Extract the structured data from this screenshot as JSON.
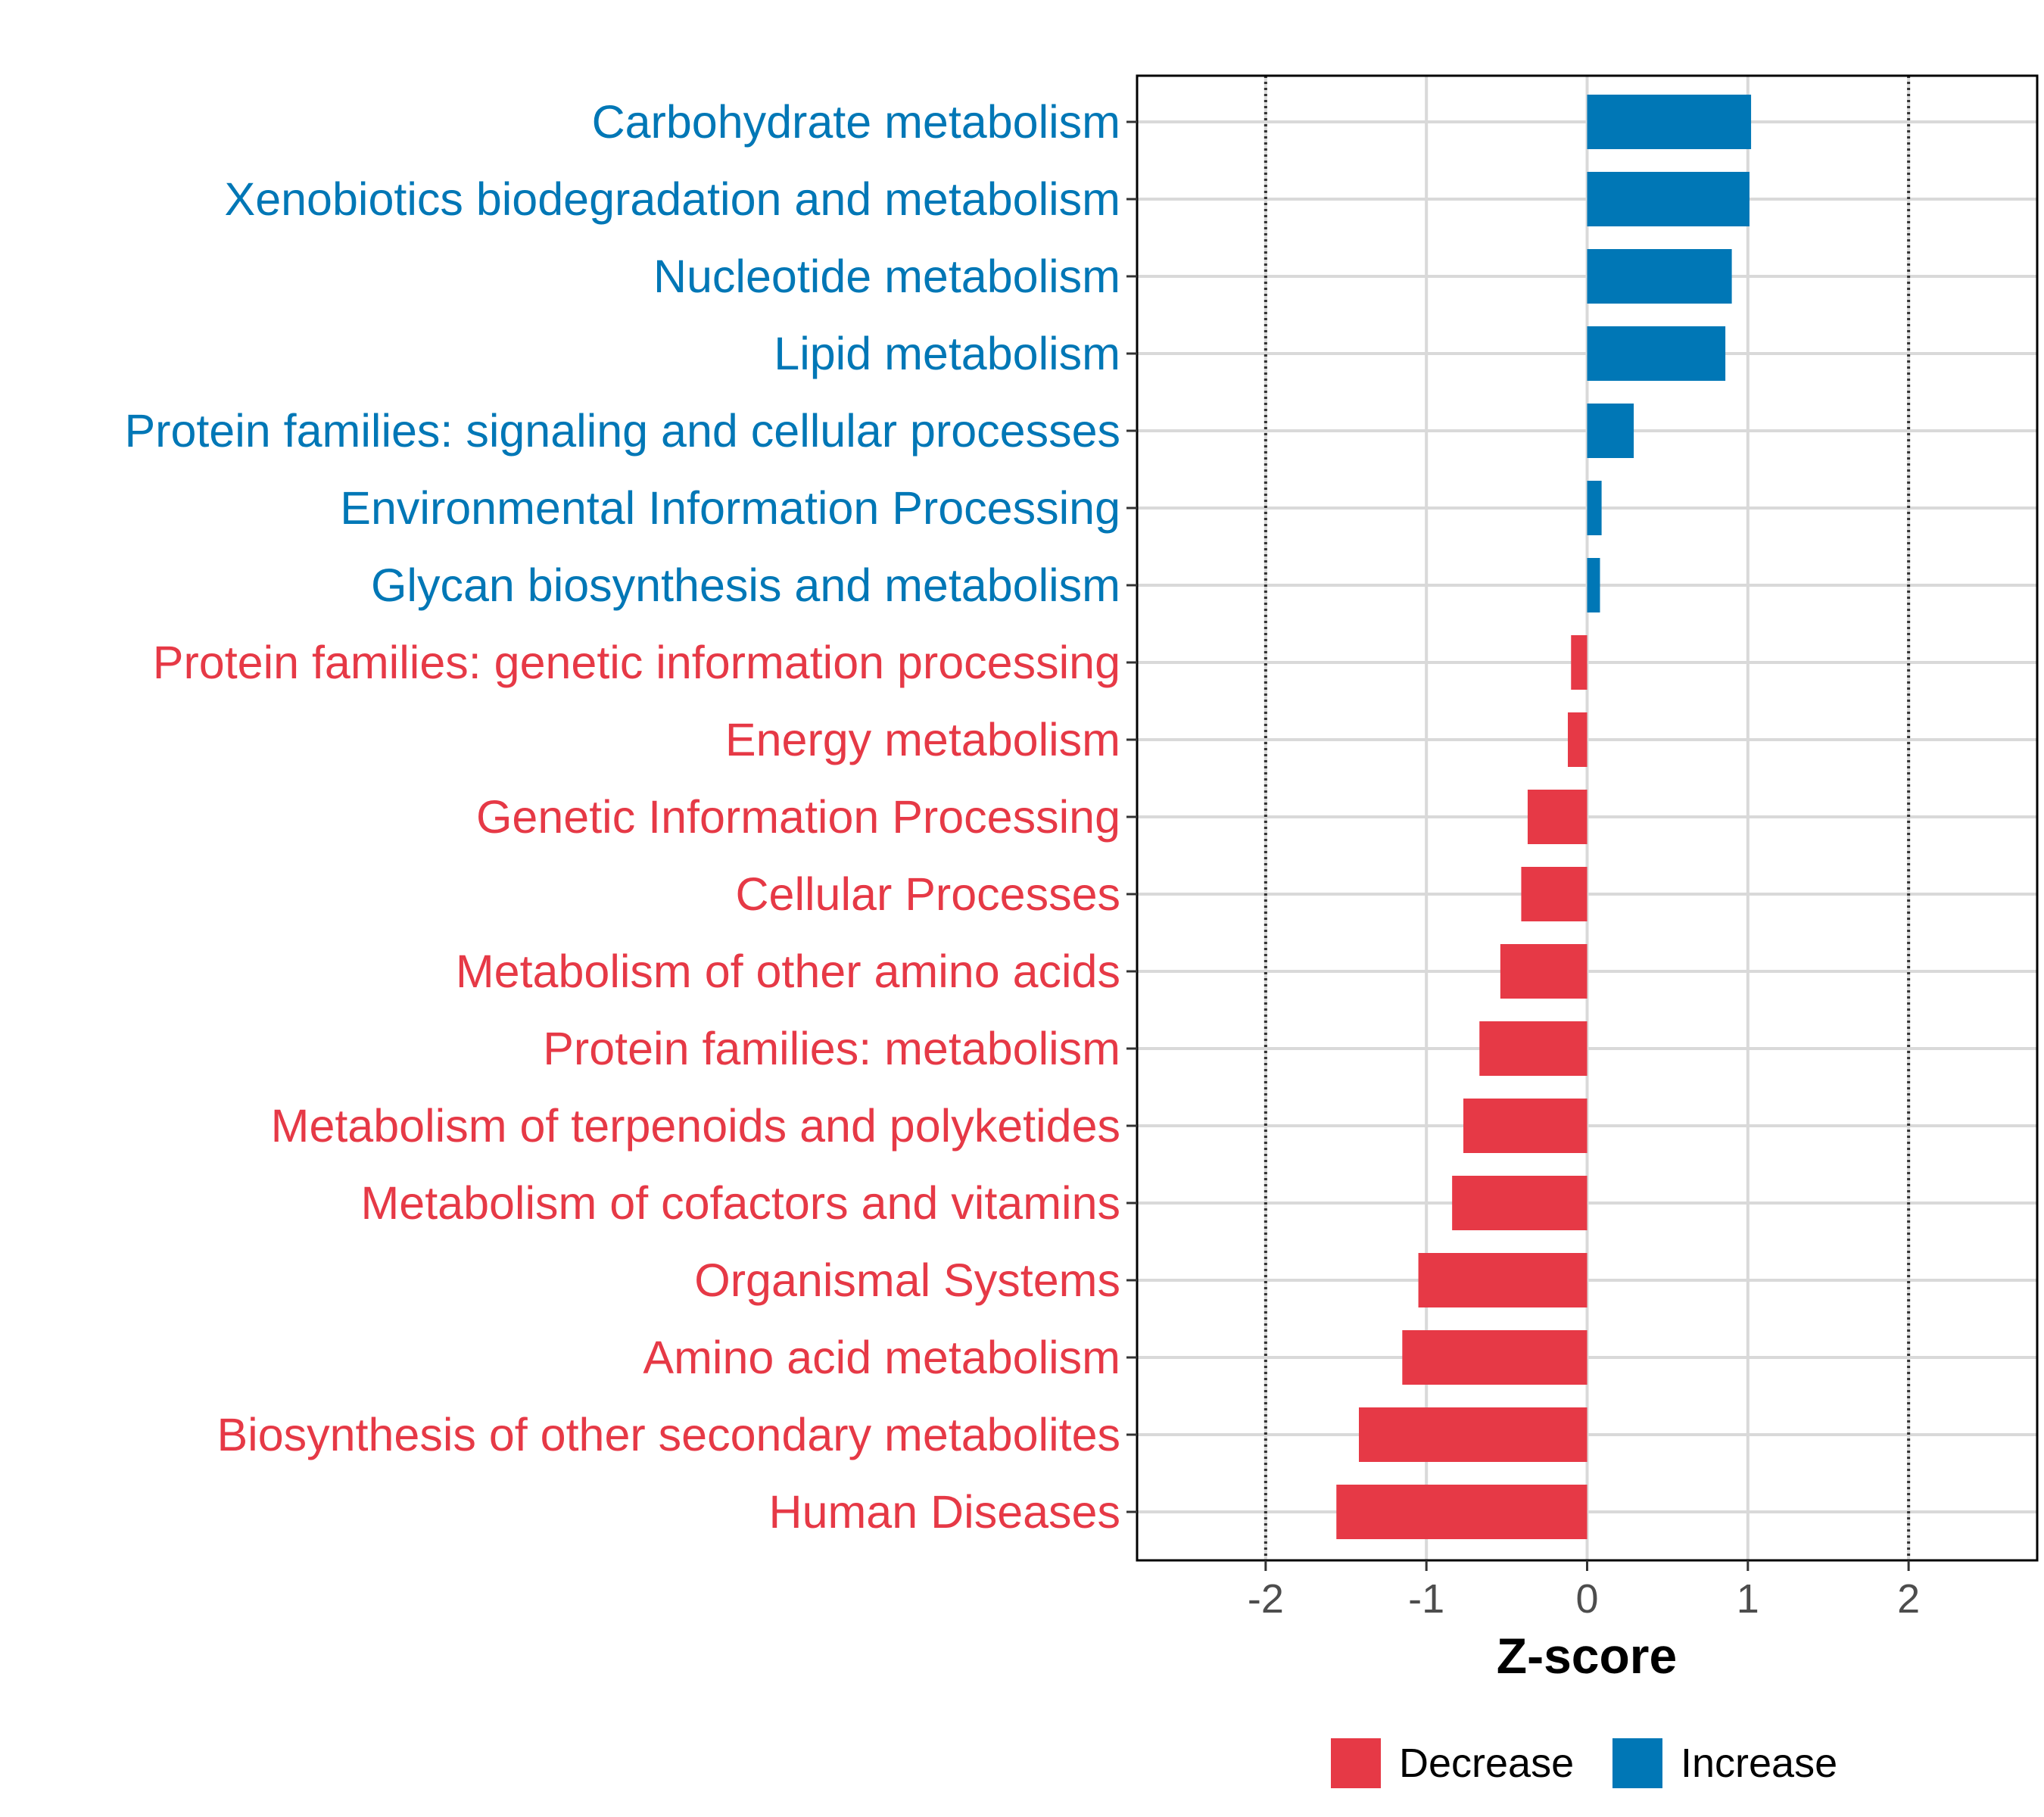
{
  "chart_data": {
    "type": "bar",
    "orientation": "horizontal",
    "xlabel": "Z-score",
    "xlim": [
      -2.8,
      2.8
    ],
    "xticks": [
      -2,
      -1,
      0,
      1,
      2
    ],
    "xtick_labels": [
      "-2",
      "-1",
      "0",
      "1",
      "2"
    ],
    "reference_lines": [
      -2,
      2
    ],
    "grid": true,
    "categories": [
      "Carbohydrate metabolism",
      "Xenobiotics biodegradation and metabolism",
      "Nucleotide metabolism",
      "Lipid metabolism",
      "Protein families: signaling and cellular processes",
      "Environmental Information Processing",
      "Glycan biosynthesis and metabolism",
      "Protein families: genetic information processing",
      "Energy metabolism",
      "Genetic Information Processing",
      "Cellular Processes",
      "Metabolism of other amino acids",
      "Protein families: metabolism",
      "Metabolism of terpenoids and polyketides",
      "Metabolism of cofactors and vitamins",
      "Organismal Systems",
      "Amino acid metabolism",
      "Biosynthesis of other secondary metabolites",
      "Human Diseases"
    ],
    "values": [
      1.02,
      1.01,
      0.9,
      0.86,
      0.29,
      0.09,
      0.08,
      -0.1,
      -0.12,
      -0.37,
      -0.41,
      -0.54,
      -0.67,
      -0.77,
      -0.84,
      -1.05,
      -1.15,
      -1.42,
      -1.56
    ],
    "groups": [
      "Increase",
      "Increase",
      "Increase",
      "Increase",
      "Increase",
      "Increase",
      "Increase",
      "Decrease",
      "Decrease",
      "Decrease",
      "Decrease",
      "Decrease",
      "Decrease",
      "Decrease",
      "Decrease",
      "Decrease",
      "Decrease",
      "Decrease",
      "Decrease"
    ],
    "colors": {
      "Decrease": "#E63946",
      "Increase": "#0077B6"
    },
    "legend": {
      "position": "bottom",
      "entries": [
        {
          "label": "Decrease",
          "color": "#E63946"
        },
        {
          "label": "Increase",
          "color": "#0077B6"
        }
      ]
    }
  }
}
